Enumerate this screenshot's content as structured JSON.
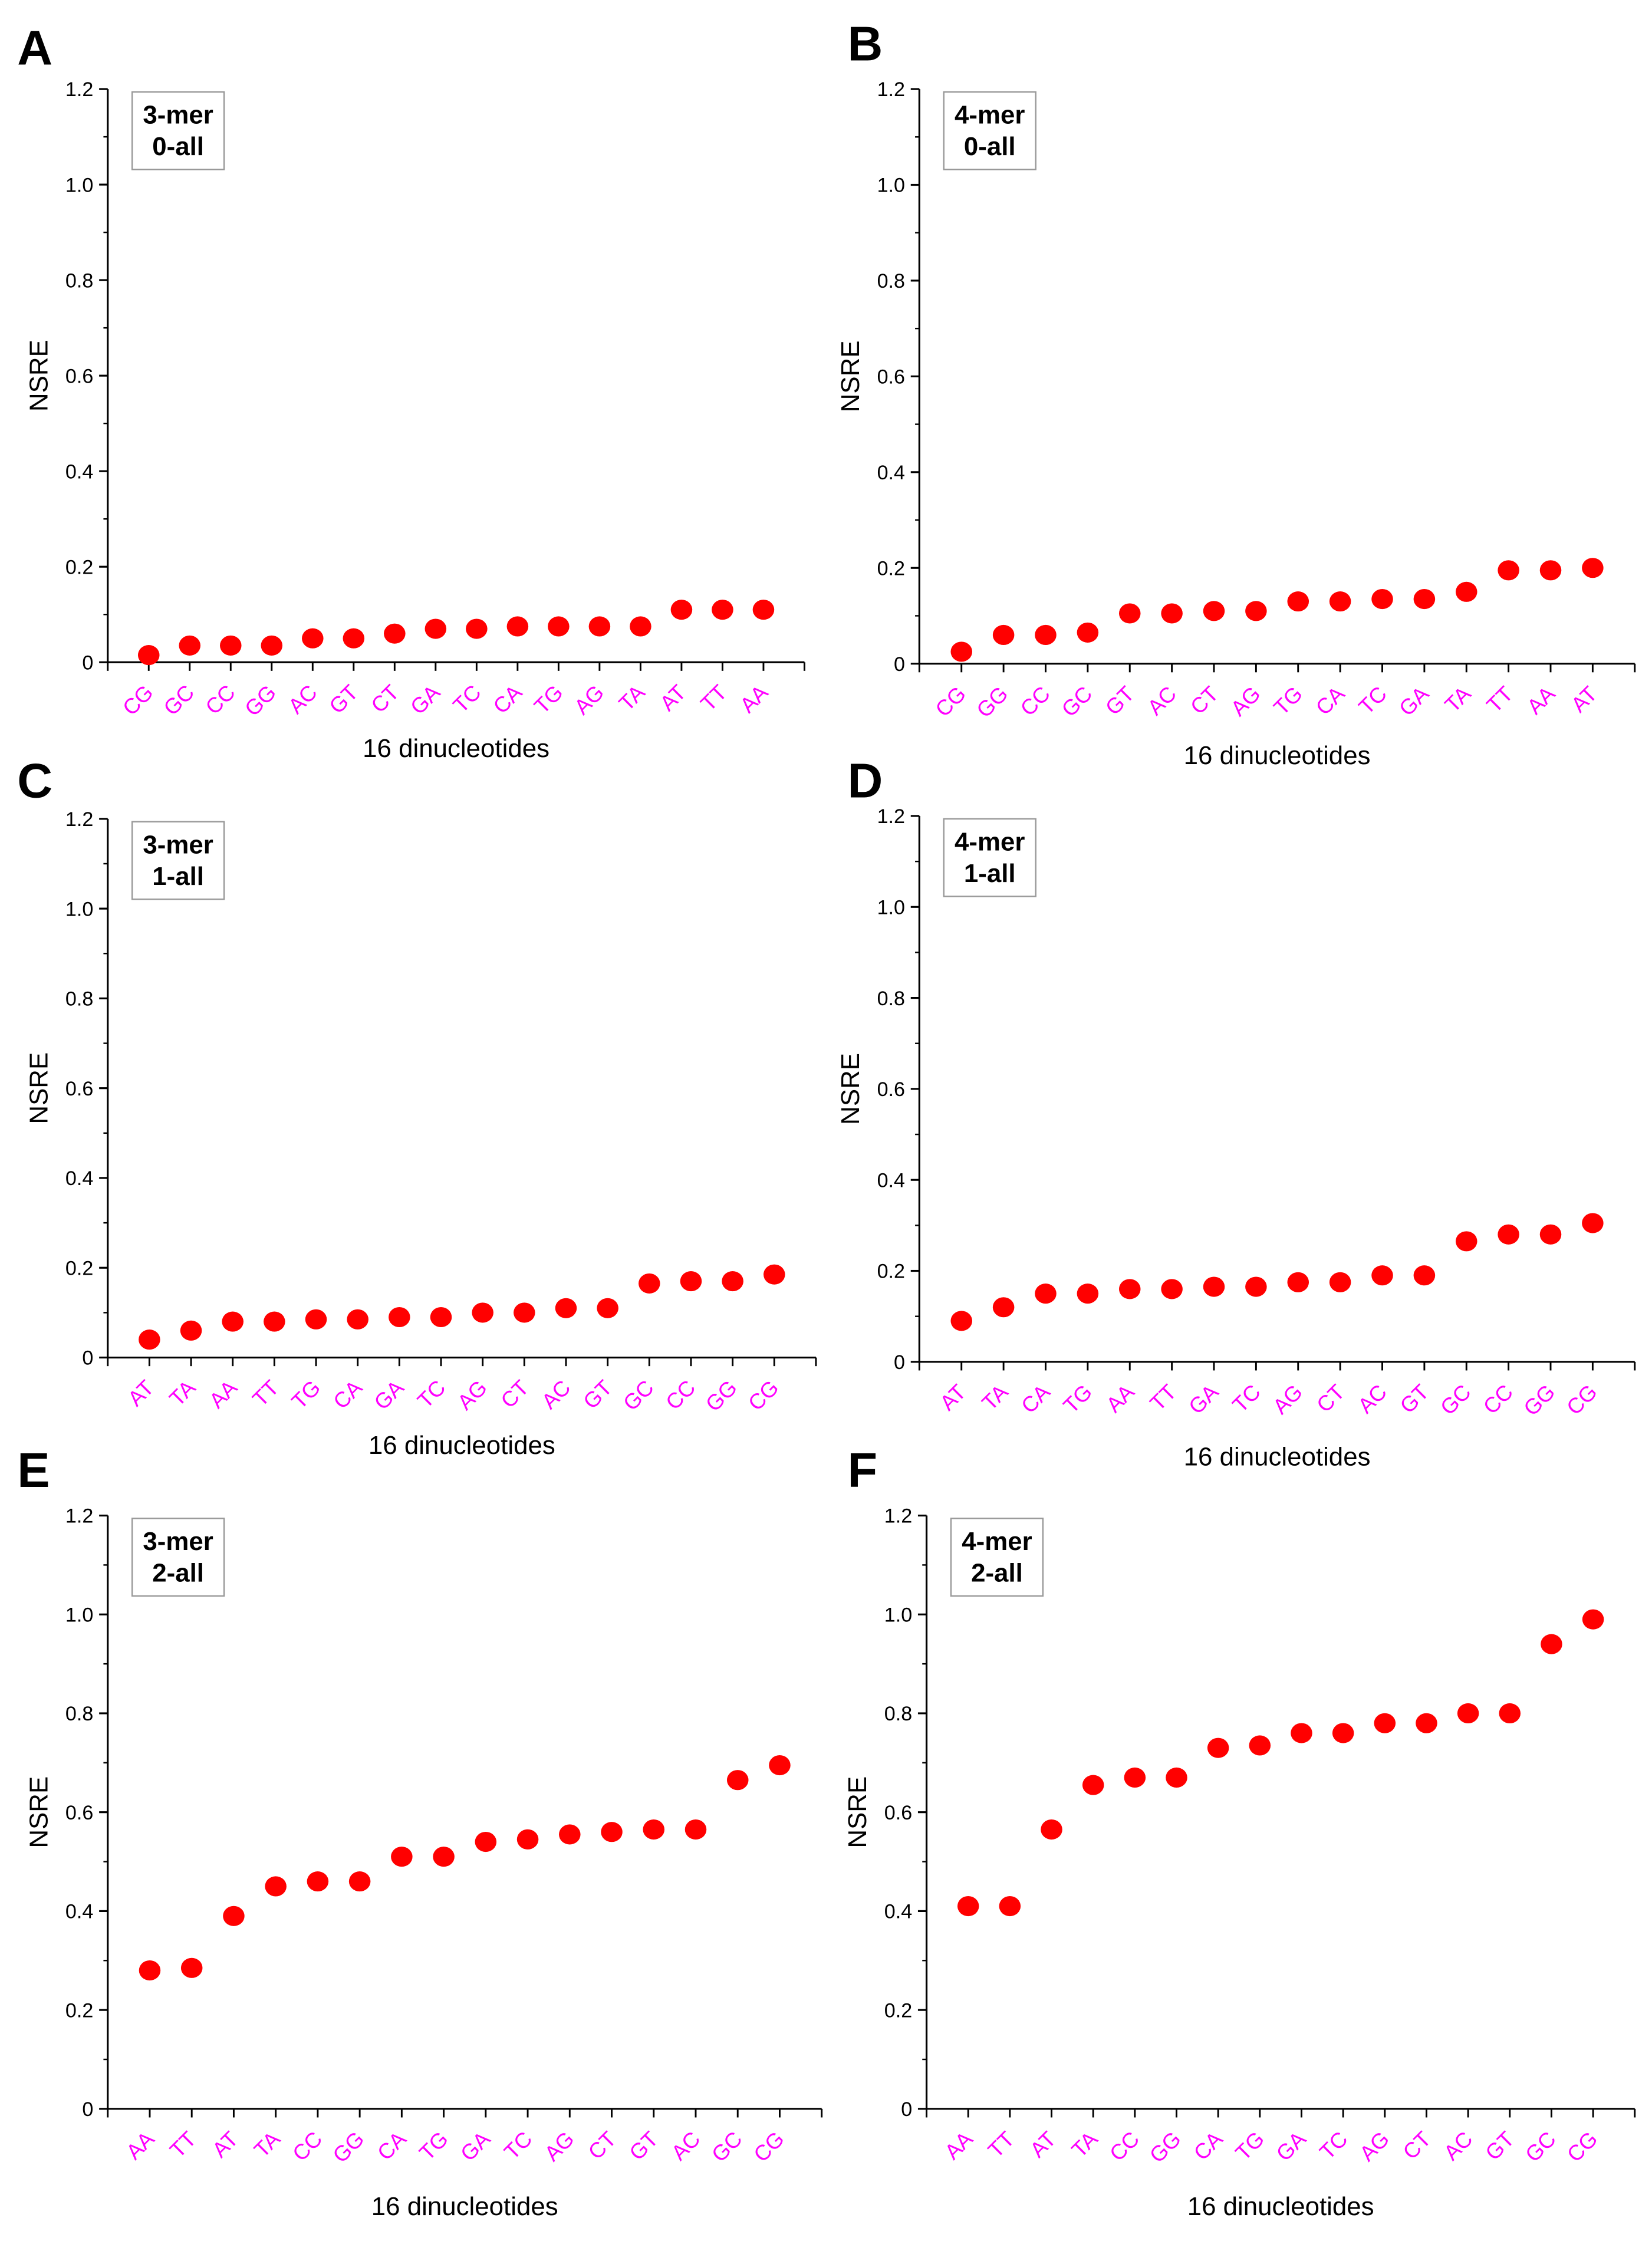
{
  "chart_data": [
    {
      "panel": "A",
      "type": "scatter",
      "box": [
        "3-mer",
        "0-all"
      ],
      "xlabel": "16 dinucleotides",
      "ylabel": "NSRE",
      "ylim": [
        0,
        1.2
      ],
      "yticks": [
        "0",
        "0.2",
        "0.4",
        "0.6",
        "0.8",
        "1.0",
        "1.2"
      ],
      "categories": [
        "CG",
        "GC",
        "CC",
        "GG",
        "AC",
        "GT",
        "CT",
        "GA",
        "TC",
        "CA",
        "TG",
        "AG",
        "TA",
        "AT",
        "TT",
        "AA"
      ],
      "values": [
        0.015,
        0.035,
        0.035,
        0.035,
        0.05,
        0.05,
        0.06,
        0.07,
        0.07,
        0.075,
        0.075,
        0.075,
        0.075,
        0.11,
        0.11,
        0.11
      ]
    },
    {
      "panel": "B",
      "type": "scatter",
      "box": [
        "4-mer",
        "0-all"
      ],
      "xlabel": "16 dinucleotides",
      "ylabel": "NSRE",
      "ylim": [
        0,
        1.2
      ],
      "yticks": [
        "0",
        "0.2",
        "0.4",
        "0.6",
        "0.8",
        "1.0",
        "1.2"
      ],
      "categories": [
        "CG",
        "GG",
        "CC",
        "GC",
        "GT",
        "AC",
        "CT",
        "AG",
        "TG",
        "CA",
        "TC",
        "GA",
        "TA",
        "TT",
        "AA",
        "AT"
      ],
      "values": [
        0.025,
        0.06,
        0.06,
        0.065,
        0.105,
        0.105,
        0.11,
        0.11,
        0.13,
        0.13,
        0.135,
        0.135,
        0.15,
        0.195,
        0.195,
        0.2
      ]
    },
    {
      "panel": "C",
      "type": "scatter",
      "box": [
        "3-mer",
        "1-all"
      ],
      "xlabel": "16 dinucleotides",
      "ylabel": "NSRE",
      "ylim": [
        0,
        1.2
      ],
      "yticks": [
        "0",
        "0.2",
        "0.4",
        "0.6",
        "0.8",
        "1.0",
        "1.2"
      ],
      "categories": [
        "AT",
        "TA",
        "AA",
        "TT",
        "TG",
        "CA",
        "GA",
        "TC",
        "AG",
        "CT",
        "AC",
        "GT",
        "GC",
        "CC",
        "GG",
        "CG"
      ],
      "values": [
        0.04,
        0.06,
        0.08,
        0.08,
        0.085,
        0.085,
        0.09,
        0.09,
        0.1,
        0.1,
        0.11,
        0.11,
        0.165,
        0.17,
        0.17,
        0.185
      ]
    },
    {
      "panel": "D",
      "type": "scatter",
      "box": [
        "4-mer",
        "1-all"
      ],
      "xlabel": "16 dinucleotides",
      "ylabel": "NSRE",
      "ylim": [
        0,
        1.2
      ],
      "yticks": [
        "0",
        "0.2",
        "0.4",
        "0.6",
        "0.8",
        "1.0",
        "1.2"
      ],
      "categories": [
        "AT",
        "TA",
        "CA",
        "TG",
        "AA",
        "TT",
        "GA",
        "TC",
        "AG",
        "CT",
        "AC",
        "GT",
        "GC",
        "CC",
        "GG",
        "CG"
      ],
      "values": [
        0.09,
        0.12,
        0.15,
        0.15,
        0.16,
        0.16,
        0.165,
        0.165,
        0.175,
        0.175,
        0.19,
        0.19,
        0.265,
        0.28,
        0.28,
        0.305
      ]
    },
    {
      "panel": "E",
      "type": "scatter",
      "box": [
        "3-mer",
        "2-all"
      ],
      "xlabel": "16 dinucleotides",
      "ylabel": "NSRE",
      "ylim": [
        0,
        1.2
      ],
      "yticks": [
        "0",
        "0.2",
        "0.4",
        "0.6",
        "0.8",
        "1.0",
        "1.2"
      ],
      "categories": [
        "AA",
        "TT",
        "AT",
        "TA",
        "CC",
        "GG",
        "CA",
        "TG",
        "GA",
        "TC",
        "AG",
        "CT",
        "GT",
        "AC",
        "GC",
        "CG"
      ],
      "values": [
        0.28,
        0.285,
        0.39,
        0.45,
        0.46,
        0.46,
        0.51,
        0.51,
        0.54,
        0.545,
        0.555,
        0.56,
        0.565,
        0.565,
        0.665,
        0.695
      ]
    },
    {
      "panel": "F",
      "type": "scatter",
      "box": [
        "4-mer",
        "2-all"
      ],
      "xlabel": "16 dinucleotides",
      "ylabel": "NSRE",
      "ylim": [
        0,
        1.2
      ],
      "yticks": [
        "0",
        "0.2",
        "0.4",
        "0.6",
        "0.8",
        "1.0",
        "1.2"
      ],
      "categories": [
        "AA",
        "TT",
        "AT",
        "TA",
        "CC",
        "GG",
        "CA",
        "TG",
        "GA",
        "TC",
        "AG",
        "CT",
        "AC",
        "GT",
        "GC",
        "CG"
      ],
      "values": [
        0.41,
        0.41,
        0.565,
        0.655,
        0.67,
        0.67,
        0.73,
        0.735,
        0.76,
        0.76,
        0.78,
        0.78,
        0.8,
        0.8,
        0.94,
        0.99
      ]
    }
  ],
  "colors": {
    "point": "#ff0000",
    "tick_label": "#ff00ff",
    "axis": "#000000"
  }
}
